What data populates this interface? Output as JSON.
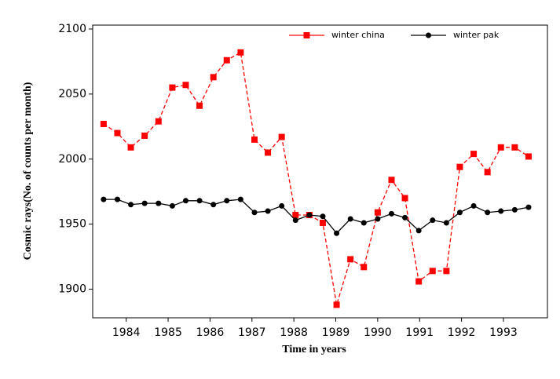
{
  "chart_data": {
    "type": "line",
    "xlabel": "Time in years",
    "ylabel": "Cosmic rays(No. of counts per month)",
    "x": [
      1983.46,
      1983.79,
      1984.11,
      1984.44,
      1984.77,
      1985.1,
      1985.42,
      1985.75,
      1986.08,
      1986.4,
      1986.73,
      1987.06,
      1987.38,
      1987.71,
      1988.04,
      1988.37,
      1988.69,
      1989.02,
      1989.35,
      1989.67,
      1990.0,
      1990.33,
      1990.65,
      1990.98,
      1991.31,
      1991.64,
      1991.96,
      1992.29,
      1992.62,
      1992.94,
      1993.27,
      1993.6
    ],
    "series": [
      {
        "name": "winter china",
        "color": "#ff0000",
        "line_style": "dashed",
        "marker": "square",
        "values": [
          2027,
          2020,
          2009,
          2018,
          2029,
          2055,
          2057,
          2041,
          2063,
          2076,
          2082,
          2015,
          2005,
          2017,
          1957,
          1957,
          1951,
          1888,
          1923,
          1917,
          1959,
          1984,
          1970,
          1906,
          1914,
          1914,
          1994,
          2004,
          1990,
          2009,
          2009,
          2002
        ]
      },
      {
        "name": "winter pak",
        "color": "#000000",
        "line_style": "solid",
        "marker": "circle",
        "values": [
          1969,
          1969,
          1965,
          1966,
          1966,
          1964,
          1968,
          1968,
          1965,
          1968,
          1969,
          1959,
          1960,
          1964,
          1953,
          1957,
          1956,
          1943,
          1954,
          1951,
          1954,
          1958,
          1955,
          1945,
          1953,
          1951,
          1959,
          1964,
          1959,
          1960,
          1961,
          1963
        ]
      }
    ],
    "xlim": [
      1983.2,
      1994.05
    ],
    "xticks": [
      1984,
      1985,
      1986,
      1987,
      1988,
      1989,
      1990,
      1991,
      1992,
      1993
    ],
    "ylim": [
      1878,
      2103
    ],
    "yticks": [
      1900,
      1950,
      2000,
      2050,
      2100
    ],
    "legend": "top-right"
  }
}
